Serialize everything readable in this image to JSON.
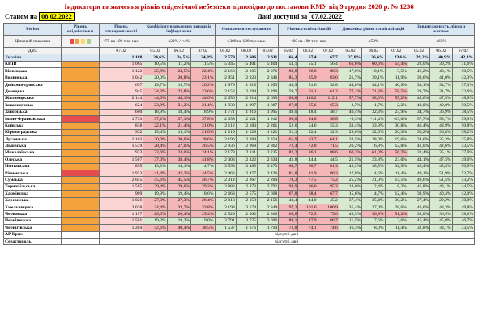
{
  "title": "Індикатори визначення рівнів епідемічної небезпеки відповідно до постанови КМУ від 9 грудня 2020 р. № 1236",
  "status_label": "Станом на",
  "status_date": "08.02.2022",
  "available_label": "Дані доступні за",
  "available_date": "07.02.2022",
  "headers": {
    "region": "Регіон",
    "level": "Рівень епідебезпеки",
    "incidence": "Рівень захворюваності",
    "detection": "Коефіцієнт виявлення випадків інфікування",
    "testing": "Охоплення тестуванням",
    "hosp": "Рівень госпіталізацій",
    "dynamics": "Динаміка рівня госпіталізацій",
    "oxygen": "Завантаженість ліжок з киснем"
  },
  "subheaders": {
    "indicator": "Цільовий показник",
    "incidence_target": "<75 на 100 тис. нас.",
    "detection_target": "≤20% / <4%",
    "testing_target": "≥300 на 100 тис. нас.",
    "hosp_target": "<60 на 100 тис. нас.",
    "dynamics_target": "≤50%",
    "oxygen_target": "≤65%"
  },
  "date_label": "Дата",
  "dates": {
    "incidence": "07.02",
    "d1": "05.02",
    "d2": "06.02",
    "d3": "07.02"
  },
  "rows": [
    {
      "name": "Україна",
      "lvl": "",
      "inc": "1 188",
      "det": [
        "24,6%",
        "24,5%",
        "24,8%"
      ],
      "tst": [
        "2 579",
        "2 606",
        "2 611"
      ],
      "hos": [
        "66,4",
        "67,4",
        "67,7"
      ],
      "dyn": [
        "27,8%",
        "26,6%",
        "23,6%"
      ],
      "oxy": [
        "39,2%",
        "40,9%",
        "42,3%"
      ]
    },
    {
      "name": "КИЇВ",
      "lvl": "orange",
      "inc": "1 065",
      "det": [
        "10,5%",
        "11,2%",
        "11,5%"
      ],
      "tst": [
        "5 345",
        "5 401",
        "5 404"
      ],
      "hos": [
        "53,1",
        "55,1",
        "56,4"
      ],
      "dyn": [
        "61,6%",
        "60,6%",
        "54,4%"
      ],
      "oxy": [
        "28,0%",
        "30,2%",
        "31,6%"
      ]
    },
    {
      "name": "Вінницька",
      "lvl": "orange",
      "inc": "1 122",
      "det": [
        "25,8%",
        "24,5%",
        "22,4%"
      ],
      "tst": [
        "2 168",
        "2 105",
        "2 076"
      ],
      "hos": [
        "88,8",
        "86,8",
        "88,3"
      ],
      "dyn": [
        "17,6%",
        "10,1%",
        "3,5%"
      ],
      "oxy": [
        "46,2%",
        "48,1%",
        "50,5%"
      ]
    },
    {
      "name": "Волинська",
      "lvl": "orange",
      "inc": "1 042",
      "det": [
        "20,0%",
        "20,8%",
        "23,1%"
      ],
      "tst": [
        "2 951",
        "2 923",
        "2 846"
      ],
      "hos": [
        "85,3",
        "85,9",
        "83,0"
      ],
      "dyn": [
        "21,7%",
        "20,1%",
        "11,9%"
      ],
      "oxy": [
        "39,6%",
        "41,0%",
        "42,3%"
      ]
    },
    {
      "name": "Дніпропетровська",
      "lvl": "orange",
      "inc": "657",
      "det": [
        "19,7%",
        "19,7%",
        "20,2%"
      ],
      "tst": [
        "1 879",
        "1 915",
        "1 953"
      ],
      "hos": [
        "49,9",
        "51,6",
        "52,8"
      ],
      "dyn": [
        "44,0%",
        "44,1%",
        "40,9%"
      ],
      "oxy": [
        "33,1%",
        "34,7%",
        "37,3%"
      ]
    },
    {
      "name": "Донецька",
      "lvl": "orange",
      "inc": "945",
      "det": [
        "24,2%",
        "23,8%",
        "23,6%"
      ],
      "tst": [
        "2 152",
        "2 194",
        "2 296"
      ],
      "hos": [
        "59,7",
        "61,1",
        "61,2"
      ],
      "dyn": [
        "77,1%",
        "71,3%",
        "58,5%"
      ],
      "oxy": [
        "29,7%",
        "31,7%",
        "32,6%"
      ]
    },
    {
      "name": "Житомирська",
      "lvl": "orange",
      "inc": "2 144",
      "det": [
        "44,6%",
        "44,1%",
        "44,6%"
      ],
      "tst": [
        "2 656",
        "2 614",
        "2 639"
      ],
      "hos": [
        "106,8",
        "116,2",
        "112,1"
      ],
      "dyn": [
        "57,7%",
        "58,0%",
        "55,2%"
      ],
      "oxy": [
        "45,6%",
        "47,9%",
        "48,9%"
      ]
    },
    {
      "name": "Закарпатська",
      "lvl": "orange",
      "inc": "624",
      "det": [
        "23,8%",
        "21,2%",
        "21,4%"
      ],
      "tst": [
        "1 930",
        "1 997",
        "1 887"
      ],
      "hos": [
        "67,8",
        "65,6",
        "65,3"
      ],
      "dyn": [
        "2,7%",
        "-1,7%",
        "-2,2%"
      ],
      "oxy": [
        "48,0%",
        "49,0%",
        "50,5%"
      ]
    },
    {
      "name": "Запорізька",
      "lvl": "orange",
      "inc": "600",
      "det": [
        "18,9%",
        "18,4%",
        "18,9%"
      ],
      "tst": [
        "1 771",
        "1 916",
        "1 995"
      ],
      "hos": [
        "49,0",
        "48,4",
        "48,7"
      ],
      "dyn": [
        "40,4%",
        "32,3%",
        "23,9%"
      ],
      "oxy": [
        "34,7%",
        "36,9%",
        "38,5%"
      ]
    },
    {
      "name": "Івано-Франківська",
      "lvl": "red",
      "inc": "1 733",
      "det": [
        "37,2%",
        "37,1%",
        "37,8%"
      ],
      "tst": [
        "2 058",
        "2 021",
        "1 912"
      ],
      "hos": [
        "96,0",
        "94,0",
        "90,8"
      ],
      "dyn": [
        "-9,3%",
        "-11,4%",
        "-13,6%"
      ],
      "oxy": [
        "57,7%",
        "58,7%",
        "59,9%"
      ]
    },
    {
      "name": "Київська",
      "lvl": "orange",
      "inc": "838",
      "det": [
        "22,1%",
        "21,4%",
        "21,0%"
      ],
      "tst": [
        "2 112",
        "2 183",
        "2 201"
      ],
      "hos": [
        "52,6",
        "54,6",
        "55,3"
      ],
      "dyn": [
        "33,4%",
        "33,8%",
        "30,8%"
      ],
      "oxy": [
        "46,4%",
        "48,9%",
        "50,8%"
      ]
    },
    {
      "name": "Кіровоградська",
      "lvl": "orange",
      "inc": "932",
      "det": [
        "19,4%",
        "19,1%",
        "21,0%"
      ],
      "tst": [
        "1 219",
        "1 229",
        "1 221"
      ],
      "hos": [
        "31,1",
        "32,4",
        "32,3"
      ],
      "dyn": [
        "29,6%",
        "32,0%",
        "26,3%"
      ],
      "oxy": [
        "36,2%",
        "36,8%",
        "38,2%"
      ]
    },
    {
      "name": "Луганська",
      "lvl": "orange",
      "inc": "1 163",
      "det": [
        "30,0%",
        "30,6%",
        "28,6%"
      ],
      "tst": [
        "2 196",
        "2 289",
        "2 354"
      ],
      "hos": [
        "65,9",
        "63,7",
        "64,1"
      ],
      "dyn": [
        "33,5%",
        "28,0%",
        "19,6%"
      ],
      "oxy": [
        "34,6%",
        "35,3%",
        "35,8%"
      ]
    },
    {
      "name": "Львівська",
      "lvl": "orange",
      "inc": "1 579",
      "det": [
        "28,4%",
        "27,0%",
        "26,5%"
      ],
      "tst": [
        "2 936",
        "2 968",
        "2 862"
      ],
      "hos": [
        "72,4",
        "72,8",
        "71,5"
      ],
      "dyn": [
        "20,2%",
        "16,8%",
        "12,8%"
      ],
      "oxy": [
        "41,0%",
        "42,6%",
        "43,5%"
      ]
    },
    {
      "name": "Миколаївська",
      "lvl": "orange",
      "inc": "933",
      "det": [
        "23,6%",
        "24,0%",
        "24,1%"
      ],
      "tst": [
        "2 178",
        "2 311",
        "2 225"
      ],
      "hos": [
        "82,2",
        "86,1",
        "88,6"
      ],
      "dyn": [
        "60,3%",
        "61,0%",
        "56,2%"
      ],
      "oxy": [
        "32,4%",
        "35,1%",
        "37,9%"
      ]
    },
    {
      "name": "Одеська",
      "lvl": "orange",
      "inc": "1 507",
      "det": [
        "37,0%",
        "38,4%",
        "41,8%"
      ],
      "tst": [
        "2 303",
        "2 322",
        "2 334"
      ],
      "hos": [
        "42,8",
        "44,4",
        "44,5"
      ],
      "dyn": [
        "21,5%",
        "23,8%",
        "23,0%"
      ],
      "oxy": [
        "44,1%",
        "47,5%",
        "49,6%"
      ]
    },
    {
      "name": "Полтавська",
      "lvl": "orange",
      "inc": "895",
      "det": [
        "13,3%",
        "14,1%",
        "14,7%"
      ],
      "tst": [
        "3 593",
        "3 485",
        "3 473"
      ],
      "hos": [
        "60,7",
        "60,7",
        "61,3"
      ],
      "dyn": [
        "43,3%",
        "38,8%",
        "32,5%"
      ],
      "oxy": [
        "46,4%",
        "48,4%",
        "50,9%"
      ]
    },
    {
      "name": "Рівненська",
      "lvl": "red",
      "inc": "1 923",
      "det": [
        "41,4%",
        "42,2%",
        "44,5%"
      ],
      "tst": [
        "2 462",
        "2 477",
        "2 426"
      ],
      "hos": [
        "81,8",
        "81,9",
        "80,3"
      ],
      "dyn": [
        "17,8%",
        "14,6%",
        "11,4%"
      ],
      "oxy": [
        "49,1%",
        "51,9%",
        "52,7%"
      ]
    },
    {
      "name": "Сумська",
      "lvl": "orange",
      "inc": "2 045",
      "det": [
        "45,6%",
        "45,5%",
        "46,7%"
      ],
      "tst": [
        "2 314",
        "2 267",
        "2 204"
      ],
      "hos": [
        "78,3",
        "77,5",
        "75,2"
      ],
      "dyn": [
        "25,2%",
        "21,0%",
        "14,1%"
      ],
      "oxy": [
        "49,6%",
        "51,5%",
        "53,2%"
      ]
    },
    {
      "name": "Тернопільська",
      "lvl": "orange",
      "inc": "1 565",
      "det": [
        "29,4%",
        "29,6%",
        "29,2%"
      ],
      "tst": [
        "2 883",
        "2 873",
        "2 792"
      ],
      "hos": [
        "94,9",
        "96,0",
        "95,2"
      ],
      "dyn": [
        "18,0%",
        "12,4%",
        "8,2%"
      ],
      "oxy": [
        "41,8%",
        "43,1%",
        "44,5%"
      ]
    },
    {
      "name": "Харківська",
      "lvl": "orange",
      "inc": "909",
      "det": [
        "19,9%",
        "19,4%",
        "18,6%"
      ],
      "tst": [
        "2 663",
        "2 575",
        "2 698"
      ],
      "hos": [
        "67,8",
        "68,4",
        "67,7"
      ],
      "dyn": [
        "15,6%",
        "14,7%",
        "12,4%"
      ],
      "oxy": [
        "39,9%",
        "40,4%",
        "42,0%"
      ]
    },
    {
      "name": "Херсонська",
      "lvl": "orange",
      "inc": "1 026",
      "det": [
        "27,3%",
        "27,3%",
        "28,4%"
      ],
      "tst": [
        "2 013",
        "2 158",
        "2 156"
      ],
      "hos": [
        "43,4",
        "44,0",
        "45,2"
      ],
      "dyn": [
        "37,4%",
        "35,4%",
        "30,2%"
      ],
      "oxy": [
        "27,4%",
        "29,2%",
        "30,0%"
      ]
    },
    {
      "name": "Хмельницька",
      "lvl": "orange",
      "inc": "2 038",
      "det": [
        "34,4%",
        "33,7%",
        "33,8%"
      ],
      "tst": [
        "3 198",
        "3 174",
        "2 849"
      ],
      "hos": [
        "97,2",
        "101,6",
        "100,9"
      ],
      "dyn": [
        "35,4%",
        "37,0%",
        "28,6%"
      ],
      "oxy": [
        "46,6%",
        "48,3%",
        "49,8%"
      ]
    },
    {
      "name": "Черкаська",
      "lvl": "orange",
      "inc": "1 197",
      "det": [
        "26,6%",
        "26,4%",
        "25,4%"
      ],
      "tst": [
        "2 529",
        "2 362",
        "2 366"
      ],
      "hos": [
        "69,8",
        "72,5",
        "75,0"
      ],
      "dyn": [
        "48,5%",
        "50,9%",
        "51,2%"
      ],
      "oxy": [
        "35,0%",
        "36,9%",
        "38,6%"
      ]
    },
    {
      "name": "Чернівецька",
      "lvl": "orange",
      "inc": "1 501",
      "det": [
        "19,2%",
        "19,2%",
        "19,0%"
      ],
      "tst": [
        "3 791",
        "3 725",
        "3 696"
      ],
      "hos": [
        "89,1",
        "87,9",
        "86,7"
      ],
      "dyn": [
        "11,5%",
        "7,6%",
        "3,6%"
      ],
      "oxy": [
        "45,4%",
        "45,8%",
        "46,7%"
      ]
    },
    {
      "name": "Чернігівська",
      "lvl": "orange",
      "inc": "1 204",
      "det": [
        "42,6%",
        "40,4%",
        "38,5%"
      ],
      "tst": [
        "1 537",
        "1 676",
        "1 794"
      ],
      "hos": [
        "72,8",
        "74,1",
        "74,6"
      ],
      "dyn": [
        "16,3%",
        "8,0%",
        "11,4%"
      ],
      "oxy": [
        "32,8%",
        "33,1%",
        "33,5%"
      ]
    }
  ],
  "na_rows": [
    {
      "name": "АР Крим",
      "text": "відсутні дані"
    },
    {
      "name": "Севастополь",
      "text": "відсутні дані"
    }
  ],
  "colors": {
    "red": "#e84b4b",
    "orange": "#f4a23b",
    "green": "#a8d08d",
    "yellow": "#ffd966",
    "pink": "#f4b6b6"
  }
}
